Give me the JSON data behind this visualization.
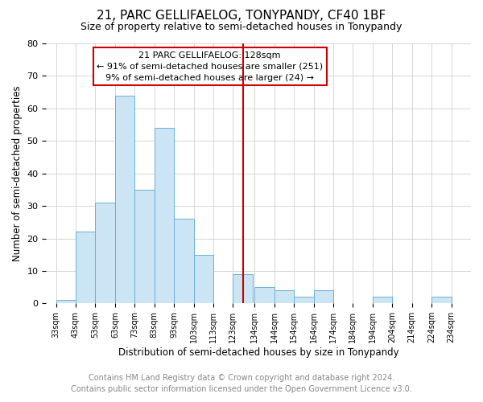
{
  "title": "21, PARC GELLIFAELOG, TONYPANDY, CF40 1BF",
  "subtitle": "Size of property relative to semi-detached houses in Tonypandy",
  "xlabel": "Distribution of semi-detached houses by size in Tonypandy",
  "ylabel": "Number of semi-detached properties",
  "footnote1": "Contains HM Land Registry data © Crown copyright and database right 2024.",
  "footnote2": "Contains public sector information licensed under the Open Government Licence v3.0.",
  "annotation_title": "21 PARC GELLIFAELOG: 128sqm",
  "annotation_line1": "← 91% of semi-detached houses are smaller (251)",
  "annotation_line2": "9% of semi-detached houses are larger (24) →",
  "bar_left_edges": [
    33,
    43,
    53,
    63,
    73,
    83,
    93,
    103,
    113,
    123,
    134,
    144,
    154,
    164,
    174,
    184,
    194,
    204,
    214,
    224
  ],
  "bar_widths": [
    10,
    10,
    10,
    10,
    10,
    10,
    10,
    10,
    10,
    10,
    10,
    10,
    10,
    10,
    10,
    10,
    10,
    10,
    10,
    10
  ],
  "bar_heights": [
    1,
    22,
    31,
    64,
    35,
    54,
    26,
    15,
    0,
    9,
    5,
    4,
    2,
    4,
    0,
    0,
    2,
    0,
    0,
    2
  ],
  "bar_color": "#cce5f5",
  "bar_edge_color": "#6baed6",
  "vline_x": 128,
  "vline_color": "#cc0000",
  "annotation_box_color": "#cc0000",
  "ylim": [
    0,
    80
  ],
  "xlim": [
    28,
    244
  ],
  "tick_labels": [
    "33sqm",
    "43sqm",
    "53sqm",
    "63sqm",
    "73sqm",
    "83sqm",
    "93sqm",
    "103sqm",
    "113sqm",
    "123sqm",
    "134sqm",
    "144sqm",
    "154sqm",
    "164sqm",
    "174sqm",
    "184sqm",
    "194sqm",
    "204sqm",
    "214sqm",
    "224sqm",
    "234sqm"
  ],
  "tick_positions": [
    33,
    43,
    53,
    63,
    73,
    83,
    93,
    103,
    113,
    123,
    134,
    144,
    154,
    164,
    174,
    184,
    194,
    204,
    214,
    224,
    234
  ],
  "yticks": [
    0,
    10,
    20,
    30,
    40,
    50,
    60,
    70,
    80
  ],
  "grid_color": "#d0d0d0",
  "background_color": "#ffffff",
  "title_fontsize": 11,
  "subtitle_fontsize": 9,
  "axis_label_fontsize": 8.5,
  "tick_fontsize": 7,
  "footnote_fontsize": 7,
  "annotation_fontsize": 8
}
